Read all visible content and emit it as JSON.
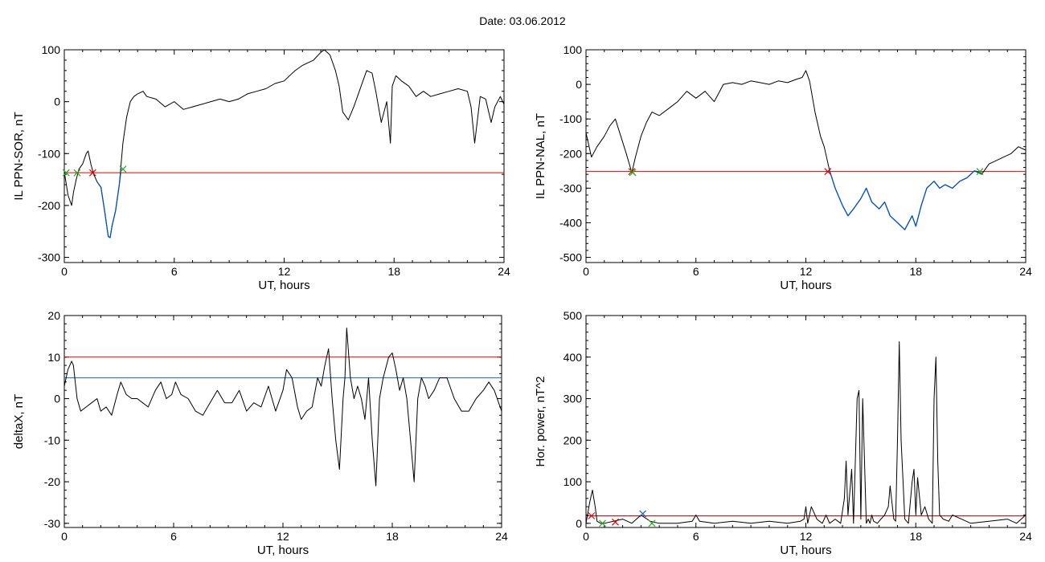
{
  "page": {
    "title": "Date:  03.06.2012"
  },
  "colors": {
    "line": "#000000",
    "threshold": "#e00000",
    "event": "#0050c8",
    "marker_start": "#22aa22",
    "marker_end": "#e00000",
    "marker_blue": "#1a5fd0"
  },
  "chart_data": [
    {
      "type": "line",
      "ylabel": "IL PPN-SOR, nT",
      "xlabel": "UT, hours",
      "xlim": [
        0,
        24
      ],
      "ylim": [
        -310,
        100
      ],
      "xticks": [
        0,
        6,
        12,
        18,
        24
      ],
      "yticks": [
        -300,
        -200,
        -100,
        0,
        100
      ],
      "grid": false,
      "threshold": -137,
      "series": [
        {
          "x": [
            0,
            0.2,
            0.4,
            0.5,
            0.65,
            0.8,
            1.0,
            1.2,
            1.3,
            1.45,
            1.6,
            1.8,
            2.0,
            2.2,
            2.4,
            2.5,
            2.6,
            2.8,
            3.0,
            3.2,
            3.4,
            3.6,
            3.8,
            4.0,
            4.3,
            4.5,
            5.0,
            5.5,
            6.0,
            6.5,
            7.0,
            7.5,
            8.0,
            8.5,
            9.0,
            9.5,
            10.0,
            10.5,
            11.0,
            11.5,
            12.0,
            12.3,
            12.6,
            13.0,
            13.3,
            13.6,
            14.0,
            14.2,
            14.5,
            14.8,
            15.0,
            15.2,
            15.5,
            15.8,
            16.0,
            16.3,
            16.5,
            16.8,
            17.0,
            17.3,
            17.6,
            17.8,
            17.9,
            18.1,
            18.4,
            18.8,
            19.2,
            19.6,
            20.0,
            20.5,
            21.0,
            21.5,
            22.0,
            22.2,
            22.4,
            22.7,
            23.0,
            23.3,
            23.5,
            23.8,
            24
          ],
          "values": [
            -135,
            -180,
            -200,
            -175,
            -150,
            -130,
            -120,
            -100,
            -95,
            -120,
            -140,
            -155,
            -165,
            -210,
            -260,
            -262,
            -240,
            -210,
            -160,
            -80,
            -30,
            0,
            10,
            15,
            20,
            10,
            5,
            -10,
            0,
            -15,
            -10,
            -5,
            0,
            5,
            0,
            5,
            15,
            20,
            25,
            35,
            40,
            50,
            60,
            70,
            75,
            80,
            95,
            100,
            90,
            60,
            30,
            -20,
            -35,
            -10,
            10,
            40,
            60,
            55,
            20,
            -40,
            0,
            -80,
            30,
            50,
            40,
            30,
            10,
            20,
            10,
            15,
            20,
            25,
            20,
            -10,
            -80,
            10,
            5,
            -40,
            -10,
            10,
            -5
          ]
        },
        {
          "name": "",
          "x": [
            1.8,
            2.0,
            2.2,
            2.4,
            2.5,
            2.6,
            2.8,
            3.0,
            3.1
          ],
          "values": [
            -155,
            -165,
            -210,
            -260,
            -262,
            -240,
            -210,
            -160,
            -130
          ]
        }
      ],
      "markers": [
        {
          "x": 0.1,
          "y": -137,
          "kind": "start"
        },
        {
          "x": 0.7,
          "y": -137,
          "kind": "start"
        },
        {
          "x": 1.55,
          "y": -137,
          "kind": "end"
        },
        {
          "x": 3.2,
          "y": -130,
          "kind": "start"
        }
      ]
    },
    {
      "type": "line",
      "ylabel": "IL PPN-NAL, nT",
      "xlabel": "UT, hours",
      "xlim": [
        0,
        24
      ],
      "ylim": [
        -515,
        100
      ],
      "xticks": [
        0,
        6,
        12,
        18,
        24
      ],
      "yticks": [
        -500,
        -400,
        -300,
        -200,
        -100,
        0,
        100
      ],
      "grid": false,
      "threshold": -252,
      "series": [
        {
          "x": [
            0,
            0.3,
            0.6,
            1.0,
            1.3,
            1.6,
            1.9,
            2.2,
            2.5,
            2.7,
            3.0,
            3.3,
            3.6,
            4.0,
            4.5,
            5.0,
            5.5,
            6.0,
            6.5,
            7.0,
            7.5,
            8.0,
            8.5,
            9.0,
            9.5,
            10.0,
            10.5,
            11.0,
            11.5,
            11.8,
            12.0,
            12.2,
            12.5,
            12.8,
            13.0,
            13.3,
            13.6,
            14.0,
            14.3,
            14.6,
            15.0,
            15.3,
            15.6,
            16.0,
            16.3,
            16.6,
            17.0,
            17.4,
            17.8,
            18.0,
            18.3,
            18.6,
            19.0,
            19.3,
            19.6,
            20.0,
            20.4,
            20.8,
            21.2,
            21.6,
            22.0,
            22.4,
            22.8,
            23.2,
            23.6,
            24
          ],
          "values": [
            -140,
            -210,
            -180,
            -150,
            -120,
            -100,
            -150,
            -200,
            -255,
            -210,
            -150,
            -110,
            -80,
            -90,
            -70,
            -50,
            -20,
            -40,
            -20,
            -50,
            0,
            5,
            0,
            10,
            5,
            0,
            10,
            5,
            15,
            20,
            40,
            10,
            -80,
            -150,
            -180,
            -250,
            -300,
            -350,
            -380,
            -360,
            -330,
            -300,
            -340,
            -360,
            -340,
            -380,
            -400,
            -420,
            -380,
            -410,
            -350,
            -300,
            -280,
            -300,
            -290,
            -300,
            -280,
            -270,
            -250,
            -260,
            -230,
            -220,
            -210,
            -200,
            -180,
            -190
          ]
        },
        {
          "name": "",
          "x": [
            13.3,
            13.6,
            14.0,
            14.3,
            14.6,
            15.0,
            15.3,
            15.6,
            16.0,
            16.3,
            16.6,
            17.0,
            17.4,
            17.8,
            18.0,
            18.3,
            18.6,
            19.0,
            19.3,
            19.6,
            20.0,
            20.4,
            20.8,
            21.2,
            21.6
          ],
          "values": [
            -250,
            -300,
            -350,
            -380,
            -360,
            -330,
            -300,
            -340,
            -360,
            -340,
            -380,
            -400,
            -420,
            -380,
            -410,
            -350,
            -300,
            -280,
            -300,
            -290,
            -300,
            -280,
            -270,
            -250,
            -255
          ]
        }
      ],
      "markers": [
        {
          "x": 2.5,
          "y": -252,
          "kind": "end"
        },
        {
          "x": 2.55,
          "y": -255,
          "kind": "start"
        },
        {
          "x": 13.2,
          "y": -252,
          "kind": "end"
        },
        {
          "x": 21.5,
          "y": -252,
          "kind": "start"
        }
      ]
    },
    {
      "type": "line",
      "ylabel": "deltaX, nT",
      "xlabel": "UT, hours",
      "xlim": [
        0,
        24
      ],
      "ylim": [
        -31,
        20
      ],
      "xticks": [
        0,
        6,
        12,
        18,
        24
      ],
      "yticks": [
        -30,
        -20,
        -10,
        0,
        10,
        20
      ],
      "grid": false,
      "thresholds": [
        {
          "value": 10,
          "color": "red"
        },
        {
          "value": 5,
          "color": "blue"
        }
      ],
      "series": [
        {
          "x": [
            0,
            0.2,
            0.4,
            0.5,
            0.7,
            0.9,
            1.2,
            1.5,
            1.8,
            2.0,
            2.3,
            2.6,
            2.9,
            3.1,
            3.4,
            3.7,
            4.0,
            4.3,
            4.6,
            5.0,
            5.3,
            5.6,
            5.9,
            6.1,
            6.4,
            6.8,
            7.2,
            7.6,
            8.0,
            8.4,
            8.8,
            9.2,
            9.6,
            10.0,
            10.4,
            10.8,
            11.2,
            11.6,
            12.0,
            12.2,
            12.5,
            12.8,
            13.0,
            13.3,
            13.6,
            13.9,
            14.1,
            14.3,
            14.5,
            14.7,
            14.9,
            15.1,
            15.3,
            15.4,
            15.5,
            15.7,
            15.9,
            16.1,
            16.3,
            16.5,
            16.7,
            16.9,
            17.1,
            17.3,
            17.5,
            17.8,
            18.0,
            18.2,
            18.4,
            18.6,
            18.8,
            19.0,
            19.2,
            19.4,
            19.6,
            19.8,
            20.0,
            20.3,
            20.6,
            21.0,
            21.4,
            21.8,
            22.2,
            22.6,
            23.0,
            23.3,
            23.6,
            24
          ],
          "values": [
            3,
            7,
            9,
            8,
            0,
            -3,
            -2,
            -1,
            0,
            -3,
            -2,
            -4,
            1,
            4,
            1,
            0,
            0,
            -1,
            -2,
            2,
            4,
            0,
            1,
            4,
            1,
            0,
            -3,
            -4,
            -1,
            2,
            -1,
            -1,
            2,
            -3,
            -1,
            -2,
            3,
            -3,
            2,
            7,
            5,
            -2,
            -5,
            -3,
            -2,
            5,
            3,
            8,
            12,
            0,
            -10,
            -17,
            0,
            5,
            17,
            5,
            0,
            3,
            0,
            -5,
            5,
            -10,
            -21,
            0,
            5,
            10,
            11,
            7,
            2,
            5,
            0,
            -10,
            -20,
            0,
            5,
            3,
            0,
            2,
            5,
            5,
            0,
            -3,
            -3,
            0,
            2,
            4,
            2,
            -3
          ]
        }
      ]
    },
    {
      "type": "line",
      "ylabel": "Hor. power, nT^2",
      "xlabel": "UT, hours",
      "xlim": [
        0,
        24
      ],
      "ylim": [
        -10,
        500
      ],
      "xticks": [
        0,
        6,
        12,
        18,
        24
      ],
      "yticks": [
        0,
        100,
        200,
        300,
        400,
        500
      ],
      "grid": false,
      "threshold": 18,
      "series": [
        {
          "x": [
            0,
            0.2,
            0.35,
            0.5,
            0.6,
            0.8,
            1.0,
            1.5,
            2.0,
            2.5,
            3.0,
            3.5,
            4.0,
            5.0,
            5.8,
            6.0,
            6.2,
            7.0,
            8.0,
            9.0,
            10.0,
            11.0,
            11.7,
            11.9,
            12.0,
            12.1,
            12.3,
            12.6,
            12.9,
            13.1,
            13.3,
            13.6,
            13.9,
            14.1,
            14.2,
            14.3,
            14.5,
            14.6,
            14.8,
            14.9,
            15.0,
            15.1,
            15.3,
            15.4,
            15.5,
            15.6,
            15.7,
            15.9,
            16.1,
            16.3,
            16.5,
            16.6,
            16.8,
            16.9,
            17.0,
            17.1,
            17.2,
            17.4,
            17.6,
            17.8,
            17.9,
            18.0,
            18.1,
            18.3,
            18.5,
            18.7,
            18.9,
            19.0,
            19.1,
            19.2,
            19.3,
            19.5,
            19.8,
            20.0,
            20.5,
            21.0,
            22.0,
            23.0,
            23.5,
            24
          ],
          "values": [
            0,
            50,
            80,
            40,
            5,
            0,
            0,
            5,
            10,
            0,
            20,
            5,
            0,
            0,
            5,
            20,
            5,
            0,
            5,
            0,
            5,
            0,
            5,
            10,
            40,
            0,
            40,
            10,
            0,
            20,
            0,
            10,
            0,
            60,
            150,
            20,
            130,
            0,
            300,
            320,
            10,
            300,
            0,
            10,
            0,
            20,
            5,
            0,
            10,
            20,
            40,
            90,
            10,
            5,
            200,
            437,
            200,
            10,
            0,
            100,
            130,
            20,
            110,
            20,
            40,
            10,
            0,
            300,
            400,
            150,
            20,
            10,
            5,
            20,
            10,
            0,
            5,
            10,
            0,
            20
          ]
        }
      ],
      "markers": [
        {
          "x": 0.3,
          "y": 18,
          "kind": "end"
        },
        {
          "x": 0.9,
          "y": 0,
          "kind": "start"
        },
        {
          "x": 1.6,
          "y": 3,
          "kind": "end"
        },
        {
          "x": 3.1,
          "y": 23,
          "kind": "blue"
        },
        {
          "x": 3.6,
          "y": 0,
          "kind": "start"
        }
      ]
    }
  ]
}
